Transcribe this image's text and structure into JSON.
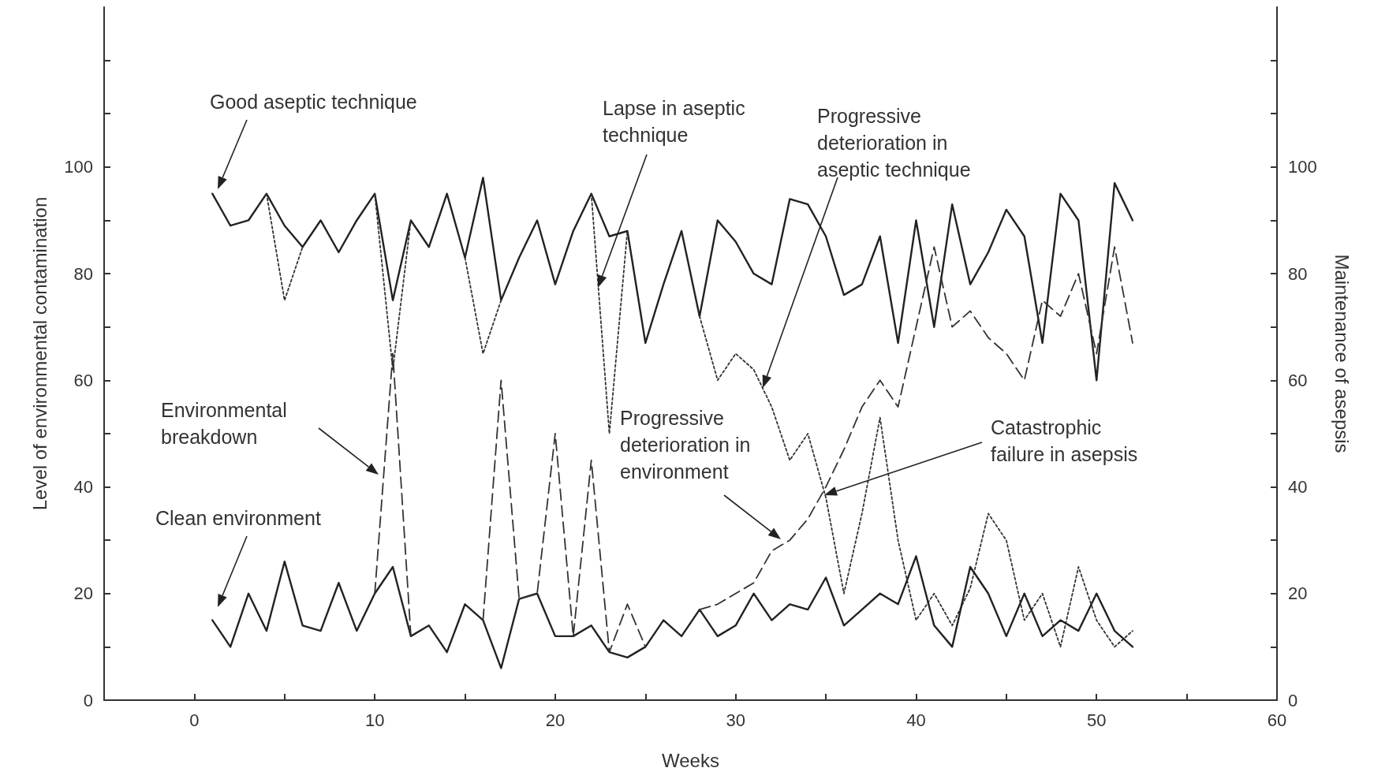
{
  "chart_data": {
    "type": "line",
    "xlabel": "Weeks",
    "ylabel": "Level of environmental contamination",
    "y2label": "Maintenance of asepsis",
    "x": [
      1,
      2,
      3,
      4,
      5,
      6,
      7,
      8,
      9,
      10,
      11,
      12,
      13,
      14,
      15,
      16,
      17,
      18,
      19,
      20,
      21,
      22,
      23,
      24,
      25,
      26,
      27,
      28,
      29,
      30,
      31,
      32,
      33,
      34,
      35,
      36,
      37,
      38,
      39,
      40,
      41,
      42,
      43,
      44,
      45,
      46,
      47,
      48,
      49,
      50,
      51,
      52
    ],
    "xlim": [
      -5,
      60
    ],
    "xticks": [
      0,
      {
        "value": 5,
        "label": null
      },
      10,
      {
        "value": 15,
        "label": null
      },
      20,
      {
        "value": 25,
        "label": null
      },
      30,
      {
        "value": 35,
        "label": null
      },
      40,
      {
        "value": 45,
        "label": null
      },
      50,
      {
        "value": 55,
        "label": null
      },
      60
    ],
    "ylim": [
      0,
      130
    ],
    "yticks": [
      0,
      {
        "value": 10,
        "label": null
      },
      20,
      {
        "value": 30,
        "label": null
      },
      40,
      {
        "value": 50,
        "label": null
      },
      60,
      {
        "value": 70,
        "label": null
      },
      80,
      {
        "value": 90,
        "label": null
      },
      100,
      {
        "value": 110,
        "label": null
      },
      {
        "value": 120,
        "label": null
      }
    ],
    "y2lim": [
      0,
      130
    ],
    "y2ticks": [
      0,
      {
        "value": 10,
        "label": null
      },
      20,
      {
        "value": 30,
        "label": null
      },
      40,
      {
        "value": 50,
        "label": null
      },
      60,
      {
        "value": 70,
        "label": null
      },
      80,
      {
        "value": 90,
        "label": null
      },
      100,
      {
        "value": 110,
        "label": null
      },
      {
        "value": 120,
        "label": null
      }
    ],
    "grid": false,
    "marker": "none",
    "series": [
      {
        "color": "#222222",
        "line_style": "solid",
        "values": [
          95,
          89,
          90,
          95,
          89,
          85,
          90,
          84,
          90,
          95,
          75,
          90,
          85,
          95,
          83,
          98,
          75,
          83,
          90,
          78,
          88,
          95,
          87,
          88,
          67,
          78,
          88,
          72,
          90,
          86,
          80,
          78,
          94,
          93,
          87,
          76,
          78,
          87,
          67,
          90,
          70,
          93,
          78,
          84,
          92,
          87,
          67,
          95,
          90,
          60,
          97,
          90
        ]
      },
      {
        "color": "#333333",
        "line_style": "dotted",
        "values": [
          null,
          null,
          null,
          95,
          75,
          85,
          null,
          null,
          null,
          95,
          62,
          90,
          null,
          null,
          83,
          65,
          75,
          null,
          null,
          null,
          null,
          95,
          50,
          88,
          null,
          null,
          null,
          72,
          60,
          65,
          62,
          55,
          45,
          50,
          38,
          20,
          35,
          53,
          30,
          15,
          20,
          14,
          21,
          35,
          30,
          15,
          20,
          10,
          25,
          15,
          10,
          13
        ]
      },
      {
        "color": "#222222",
        "line_style": "solid",
        "values": [
          15,
          10,
          20,
          13,
          26,
          14,
          13,
          22,
          13,
          20,
          25,
          12,
          14,
          9,
          18,
          15,
          6,
          19,
          20,
          12,
          12,
          14,
          9,
          8,
          10,
          15,
          12,
          17,
          12,
          14,
          20,
          15,
          18,
          17,
          23,
          14,
          17,
          20,
          18,
          27,
          14,
          10,
          25,
          20,
          12,
          20,
          12,
          15,
          13,
          20,
          13,
          10
        ]
      },
      {
        "color": "#333333",
        "line_style": "dashed",
        "values": [
          null,
          null,
          null,
          null,
          null,
          null,
          null,
          null,
          null,
          20,
          65,
          12,
          null,
          null,
          null,
          15,
          60,
          19,
          20,
          50,
          12,
          45,
          9,
          18,
          10,
          null,
          null,
          17,
          18,
          20,
          22,
          28,
          30,
          34,
          40,
          47,
          55,
          60,
          55,
          70,
          85,
          70,
          73,
          68,
          65,
          60,
          75,
          72,
          80,
          65,
          85,
          67
        ]
      }
    ],
    "annotations": [
      "Good aseptic technique",
      "Lapse in aseptic\ntechnique",
      "Progressive\ndeterioration in\naseptic technique",
      "Environmental\nbreakdown",
      "Clean environment",
      "Progressive\ndeterioration in\nenvironment",
      "Catastrophic\nfailure in asepsis"
    ]
  }
}
